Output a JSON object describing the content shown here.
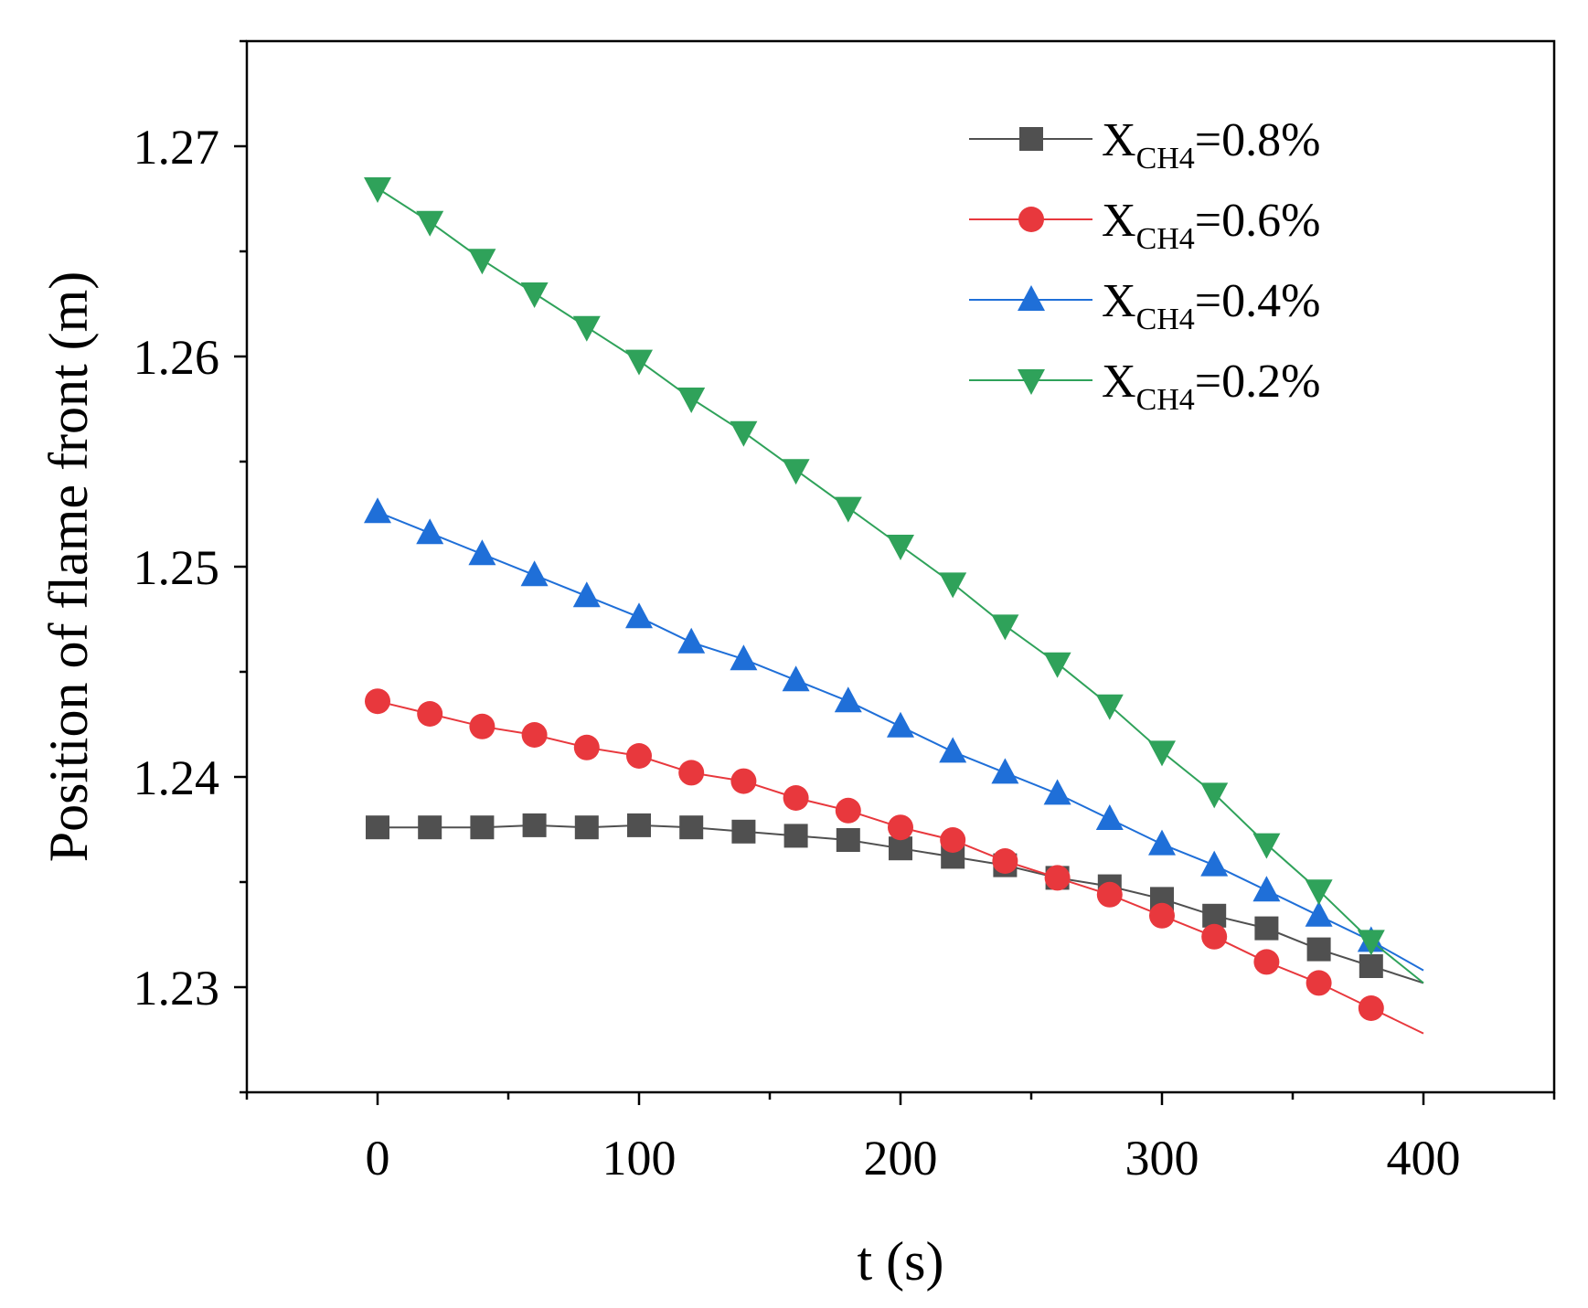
{
  "chart_data": {
    "type": "line",
    "title": "",
    "xlabel": "t (s)",
    "ylabel": "Position of flame front (m)",
    "xlim": [
      -50,
      450
    ],
    "ylim": [
      1.225,
      1.275
    ],
    "x_ticks": [
      0,
      100,
      200,
      300,
      400
    ],
    "x_tick_labels": [
      "0",
      "100",
      "200",
      "300",
      "400"
    ],
    "y_ticks": [
      1.23,
      1.24,
      1.25,
      1.26,
      1.27
    ],
    "y_tick_labels": [
      "1.23",
      "1.24",
      "1.25",
      "1.26",
      "1.27"
    ],
    "grid": false,
    "legend_position": "top-right",
    "x": [
      0,
      20,
      40,
      60,
      80,
      100,
      120,
      140,
      160,
      180,
      200,
      220,
      240,
      260,
      280,
      300,
      320,
      340,
      360,
      380
    ],
    "line_end_x": 400,
    "series": [
      {
        "name": "X_CH4=0.8%",
        "legend_main": "X",
        "legend_sub": "CH4",
        "legend_tail": "=0.8%",
        "color": "#505050",
        "marker": "square",
        "values": [
          1.2376,
          1.2376,
          1.2376,
          1.2377,
          1.2376,
          1.2377,
          1.2376,
          1.2374,
          1.2372,
          1.237,
          1.2366,
          1.2362,
          1.2358,
          1.2352,
          1.2348,
          1.2342,
          1.2334,
          1.2328,
          1.2318,
          1.231
        ],
        "line_end_value": 1.2302
      },
      {
        "name": "X_CH4=0.6%",
        "legend_main": "X",
        "legend_sub": "CH4",
        "legend_tail": "=0.6%",
        "color": "#e8383d",
        "marker": "circle",
        "values": [
          1.2436,
          1.243,
          1.2424,
          1.242,
          1.2414,
          1.241,
          1.2402,
          1.2398,
          1.239,
          1.2384,
          1.2376,
          1.237,
          1.236,
          1.2352,
          1.2344,
          1.2334,
          1.2324,
          1.2312,
          1.2302,
          1.229
        ],
        "line_end_value": 1.2278
      },
      {
        "name": "X_CH4=0.4%",
        "legend_main": "X",
        "legend_sub": "CH4",
        "legend_tail": "=0.4%",
        "color": "#1f6fd8",
        "marker": "triangle-up",
        "values": [
          1.2526,
          1.2516,
          1.2506,
          1.2496,
          1.2486,
          1.2476,
          1.2464,
          1.2456,
          1.2446,
          1.2436,
          1.2424,
          1.2412,
          1.2402,
          1.2392,
          1.238,
          1.2368,
          1.2358,
          1.2346,
          1.2334,
          1.2322
        ],
        "line_end_value": 1.2308
      },
      {
        "name": "X_CH4=0.2%",
        "legend_main": "X",
        "legend_sub": "CH4",
        "legend_tail": "=0.2%",
        "color": "#2fa25a",
        "marker": "triangle-down",
        "values": [
          1.268,
          1.2664,
          1.2646,
          1.263,
          1.2614,
          1.2598,
          1.258,
          1.2564,
          1.2546,
          1.2528,
          1.251,
          1.2492,
          1.2472,
          1.2454,
          1.2434,
          1.2412,
          1.2392,
          1.2368,
          1.2346,
          1.2322
        ],
        "line_end_value": 1.2302
      }
    ]
  }
}
